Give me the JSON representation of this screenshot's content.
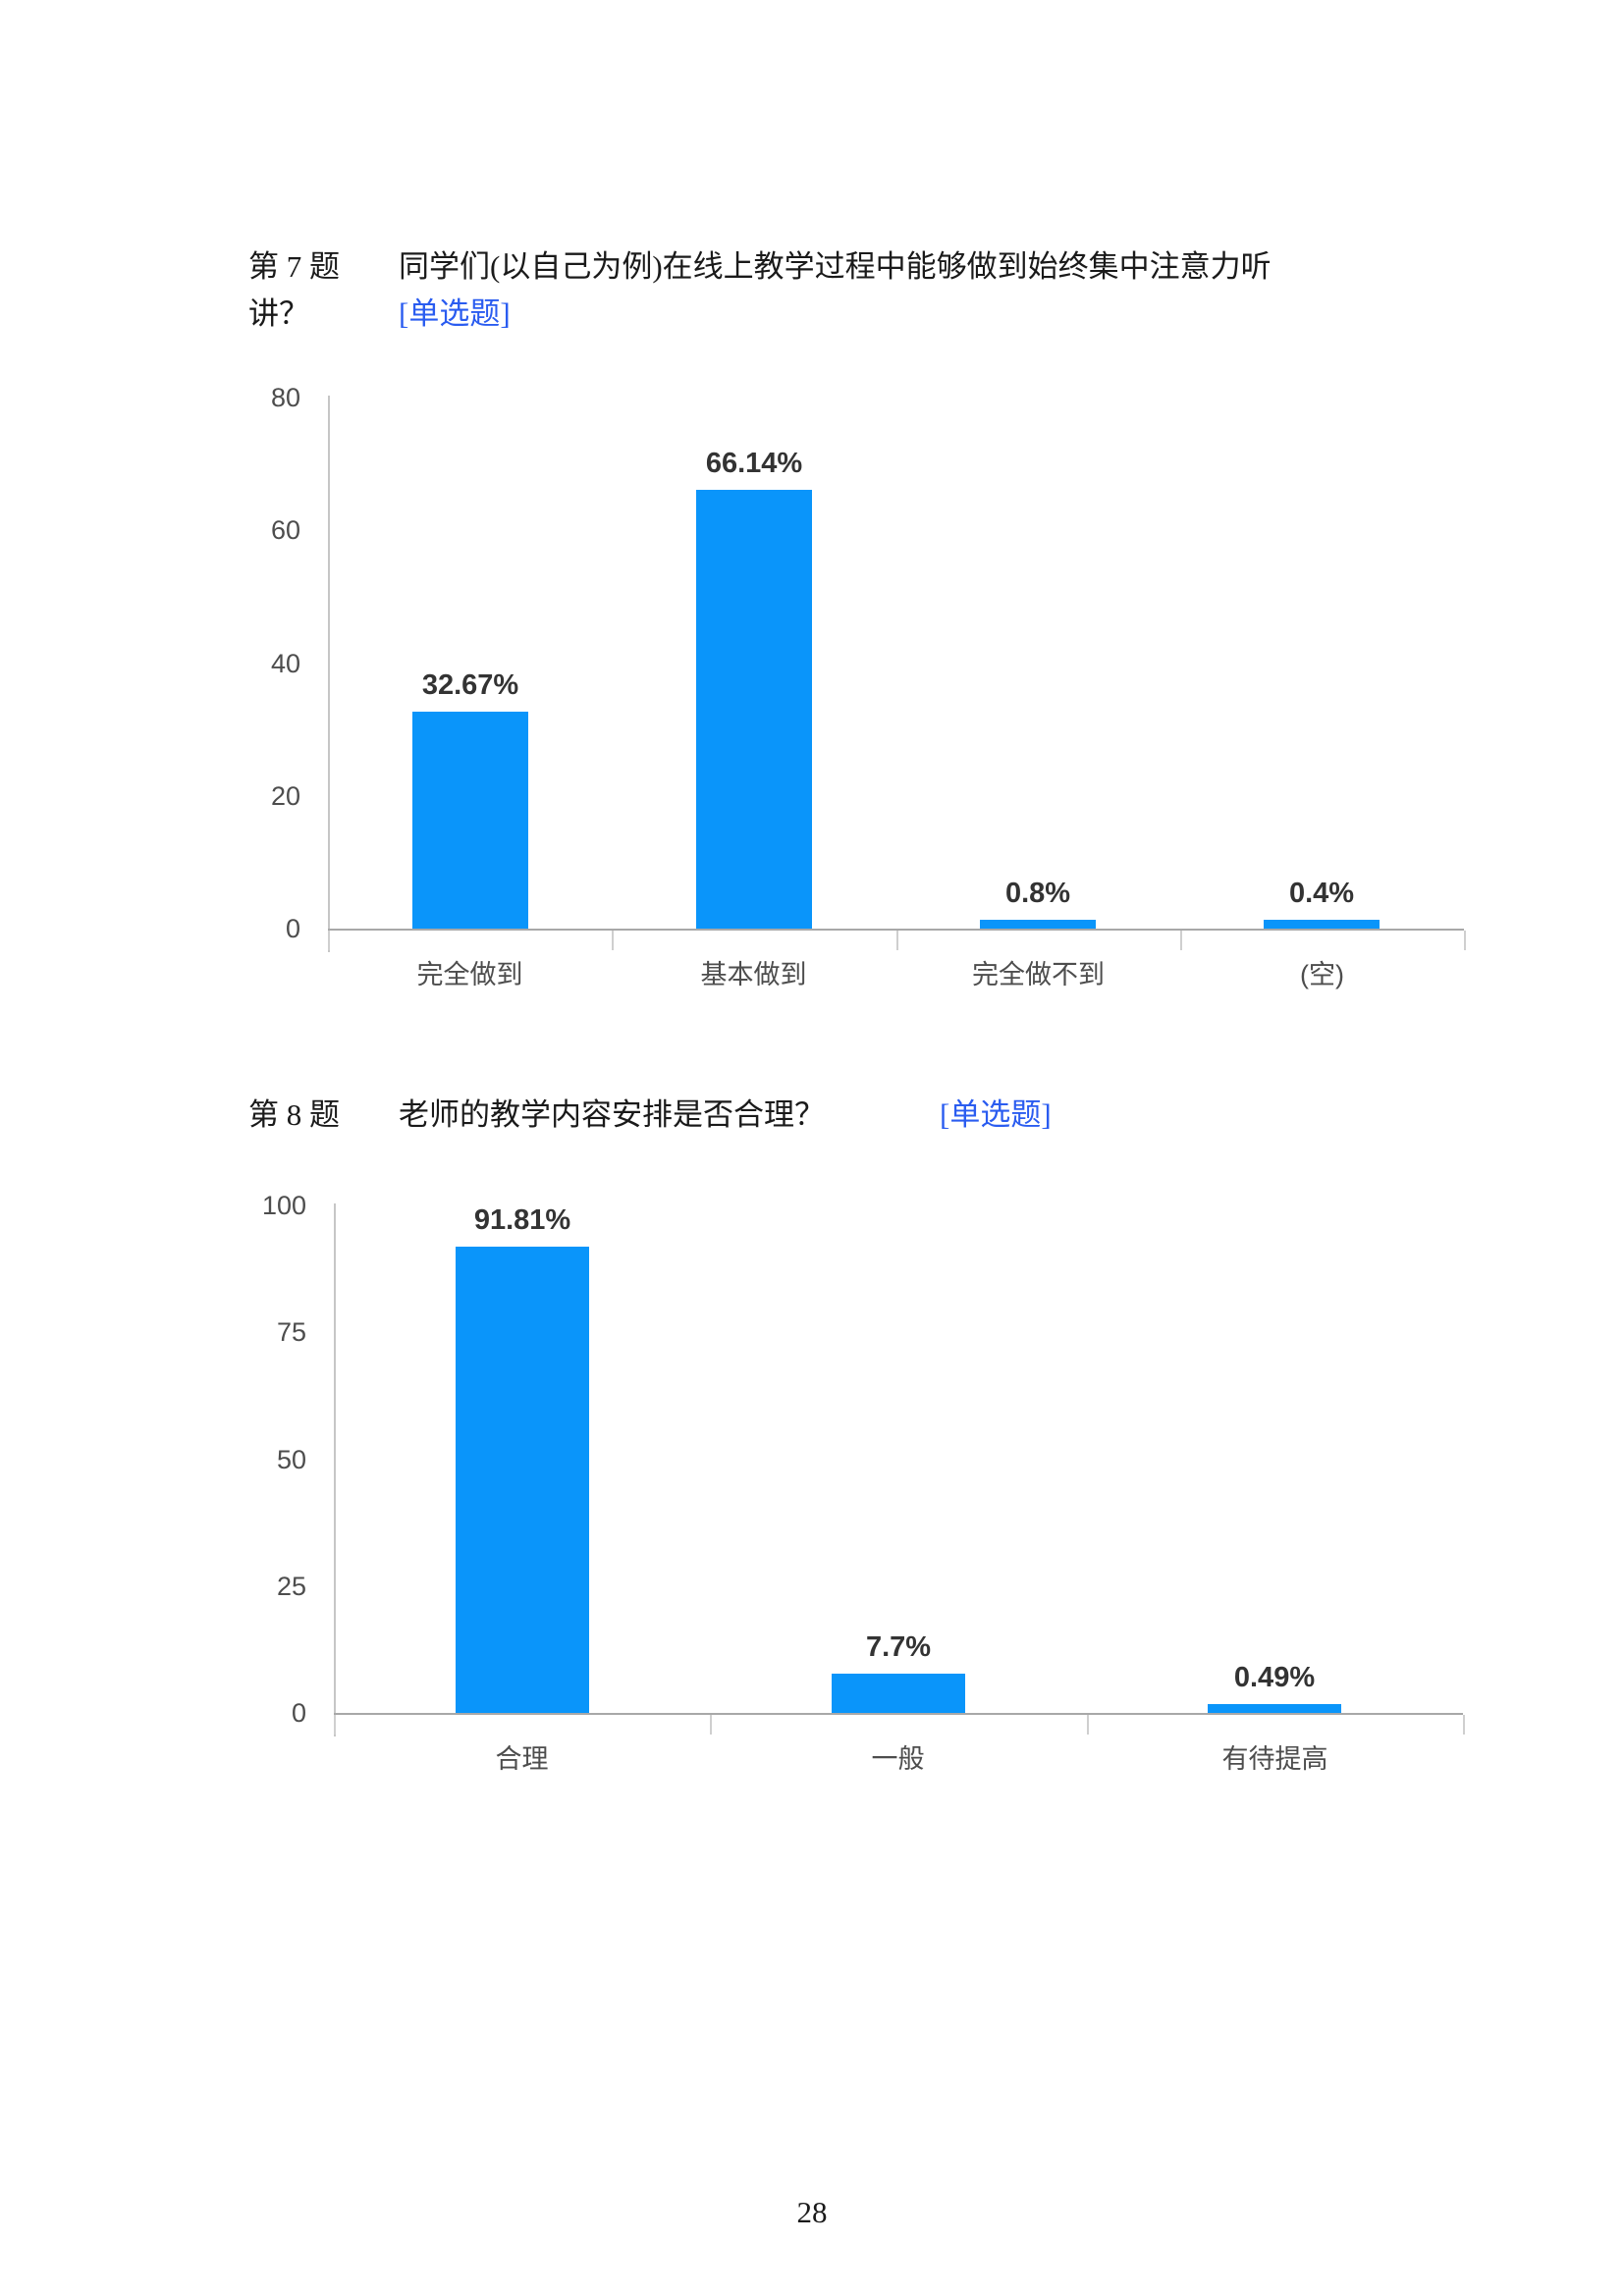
{
  "page": {
    "number": "28"
  },
  "colors": {
    "bar": "#0a95fa",
    "tag_blue": "#2a5cf0",
    "axis_line": "#c6c6c6",
    "zero_line": "#a8a8a8",
    "tick_mark": "#cfcfcf",
    "y_tick_label": "#4d4d4d",
    "value_label": "#333333",
    "category_label": "#4d4d4d",
    "question_text": "#1a1a1a"
  },
  "questions": [
    {
      "id_label": "第 7 题",
      "text_line1": "同学们(以自己为例)在线上教学过程中能够做到始终集中注意力听",
      "text_line2": "讲？",
      "tag": "[单选题]"
    },
    {
      "id_label": "第 8 题",
      "text": "老师的教学内容安排是否合理？",
      "tag": "[单选题]"
    }
  ],
  "chart_data": [
    {
      "type": "bar",
      "title": "",
      "xlabel": "",
      "ylabel": "",
      "categories": [
        "完全做到",
        "基本做到",
        "完全做不到",
        "(空)"
      ],
      "values": [
        32.67,
        66.14,
        0.8,
        0.4
      ],
      "value_labels": [
        "32.67%",
        "66.14%",
        "0.8%",
        "0.4%"
      ],
      "ylim": [
        0,
        80
      ],
      "yticks": [
        0,
        20,
        40,
        60,
        80
      ],
      "grid": false,
      "legend_position": "none"
    },
    {
      "type": "bar",
      "title": "",
      "xlabel": "",
      "ylabel": "",
      "categories": [
        "合理",
        "一般",
        "有待提高"
      ],
      "values": [
        91.81,
        7.7,
        0.49
      ],
      "value_labels": [
        "91.81%",
        "7.7%",
        "0.49%"
      ],
      "ylim": [
        0,
        100
      ],
      "yticks": [
        0,
        25,
        50,
        75,
        100
      ],
      "grid": false,
      "legend_position": "none"
    }
  ]
}
